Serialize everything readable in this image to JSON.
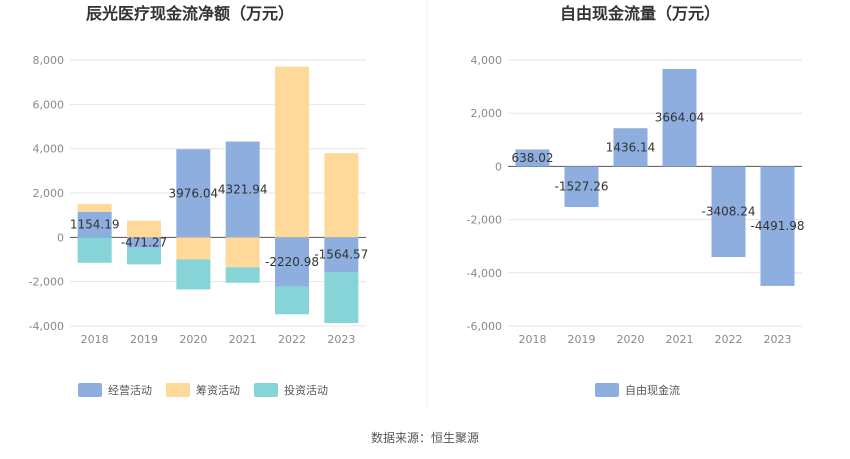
{
  "source_label": "数据来源：恒生聚源",
  "colors": {
    "operating": "#8eaee0",
    "financing": "#ffd99a",
    "investing": "#86d4d8",
    "free_cash_flow": "#8eaee0",
    "grid": "#e6e6e6",
    "axis": "#999999"
  },
  "chart_data": [
    {
      "type": "bar",
      "stacked": true,
      "title": "辰光医疗现金流净额（万元）",
      "categories": [
        "2018",
        "2019",
        "2020",
        "2021",
        "2022",
        "2023"
      ],
      "ylim": [
        -4000,
        8000
      ],
      "yticks": [
        -4000,
        -2000,
        0,
        2000,
        4000,
        6000,
        8000
      ],
      "ytick_labels": [
        "-4,000",
        "-2,000",
        "0",
        "2,000",
        "4,000",
        "6,000",
        "8,000"
      ],
      "grid": true,
      "legend_position": "bottom",
      "series": [
        {
          "name": "经营活动",
          "color_key": "operating",
          "values": [
            1154.19,
            -471.27,
            3976.04,
            4321.94,
            -2220.98,
            -1564.57
          ]
        },
        {
          "name": "筹资活动",
          "color_key": "financing",
          "values": [
            350,
            750,
            -1000,
            -1350,
            7700,
            3800
          ]
        },
        {
          "name": "投资活动",
          "color_key": "investing",
          "values": [
            -1150,
            -750,
            -1350,
            -700,
            -1250,
            -2300
          ]
        }
      ],
      "data_labels": [
        "1154.19",
        "-471.27",
        "3976.04",
        "4321.94",
        "-2220.98",
        "-1564.57"
      ]
    },
    {
      "type": "bar",
      "title": "自由现金流量（万元）",
      "categories": [
        "2018",
        "2019",
        "2020",
        "2021",
        "2022",
        "2023"
      ],
      "ylim": [
        -6000,
        4000
      ],
      "yticks": [
        -6000,
        -4000,
        -2000,
        0,
        2000,
        4000
      ],
      "ytick_labels": [
        "-6,000",
        "-4,000",
        "-2,000",
        "0",
        "2,000",
        "4,000"
      ],
      "grid": true,
      "legend_position": "bottom",
      "series": [
        {
          "name": "自由现金流",
          "color_key": "free_cash_flow",
          "values": [
            638.02,
            -1527.26,
            1436.14,
            3664.04,
            -3408.24,
            -4491.98
          ]
        }
      ],
      "data_labels": [
        "638.02",
        "-1527.26",
        "1436.14",
        "3664.04",
        "-3408.24",
        "-4491.98"
      ]
    }
  ]
}
